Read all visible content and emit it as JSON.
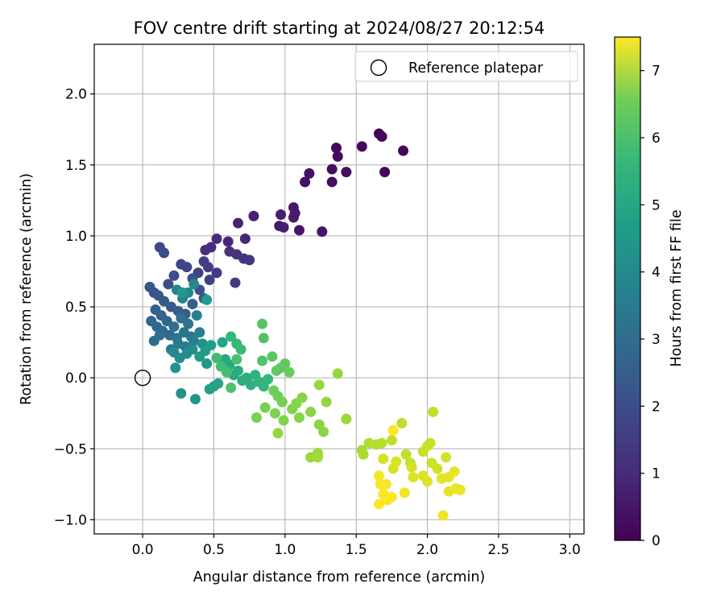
{
  "chart_data": {
    "type": "scatter",
    "title": "FOV centre drift starting at 2024/08/27 20:12:54",
    "xlabel": "Angular distance from reference (arcmin)",
    "ylabel": "Rotation from reference (arcmin)",
    "xlim": [
      -0.34,
      3.1
    ],
    "ylim": [
      -1.1,
      2.35
    ],
    "xticks": [
      "0.0",
      "0.5",
      "1.0",
      "1.5",
      "2.0",
      "2.5",
      "3.0"
    ],
    "xtick_values": [
      0,
      0.5,
      1,
      1.5,
      2,
      2.5,
      3
    ],
    "yticks": [
      "−1.0",
      "−0.5",
      "0.0",
      "0.5",
      "1.0",
      "1.5",
      "2.0"
    ],
    "ytick_values": [
      -1,
      -0.5,
      0,
      0.5,
      1,
      1.5,
      2
    ],
    "grid": true,
    "colormap": "viridis",
    "colorbar": {
      "label": "Hours from first FF file",
      "range": [
        0,
        7.5
      ],
      "ticks": [
        "0",
        "1",
        "2",
        "3",
        "4",
        "5",
        "6",
        "7"
      ],
      "tick_values": [
        0,
        1,
        2,
        3,
        4,
        5,
        6,
        7
      ]
    },
    "legend": {
      "position": "top-right",
      "entries": [
        {
          "label": "Reference platepar",
          "marker": "open-circle"
        }
      ]
    },
    "reference_point": {
      "x": 0.0,
      "y": 0.0
    },
    "points": [
      {
        "x": 1.66,
        "y": 1.72,
        "c": 0.05
      },
      {
        "x": 1.68,
        "y": 1.7,
        "c": 0.1
      },
      {
        "x": 1.83,
        "y": 1.6,
        "c": 0.1
      },
      {
        "x": 1.54,
        "y": 1.63,
        "c": 0.15
      },
      {
        "x": 1.7,
        "y": 1.45,
        "c": 0.15
      },
      {
        "x": 1.36,
        "y": 1.62,
        "c": 0.2
      },
      {
        "x": 1.37,
        "y": 1.56,
        "c": 0.2
      },
      {
        "x": 1.33,
        "y": 1.47,
        "c": 0.25
      },
      {
        "x": 1.43,
        "y": 1.45,
        "c": 0.3
      },
      {
        "x": 1.33,
        "y": 1.38,
        "c": 0.3
      },
      {
        "x": 1.17,
        "y": 1.44,
        "c": 0.35
      },
      {
        "x": 1.14,
        "y": 1.38,
        "c": 0.35
      },
      {
        "x": 1.26,
        "y": 1.03,
        "c": 0.4
      },
      {
        "x": 1.1,
        "y": 1.04,
        "c": 0.45
      },
      {
        "x": 1.06,
        "y": 1.2,
        "c": 0.5
      },
      {
        "x": 1.07,
        "y": 1.16,
        "c": 0.55
      },
      {
        "x": 1.06,
        "y": 1.13,
        "c": 0.55
      },
      {
        "x": 0.97,
        "y": 1.15,
        "c": 0.6
      },
      {
        "x": 0.96,
        "y": 1.07,
        "c": 0.6
      },
      {
        "x": 0.99,
        "y": 1.06,
        "c": 0.65
      },
      {
        "x": 0.78,
        "y": 1.14,
        "c": 0.7
      },
      {
        "x": 0.67,
        "y": 1.09,
        "c": 0.75
      },
      {
        "x": 0.72,
        "y": 0.98,
        "c": 0.8
      },
      {
        "x": 0.6,
        "y": 0.96,
        "c": 0.85
      },
      {
        "x": 0.52,
        "y": 0.98,
        "c": 0.9
      },
      {
        "x": 0.48,
        "y": 0.92,
        "c": 0.95
      },
      {
        "x": 0.44,
        "y": 0.9,
        "c": 1.0
      },
      {
        "x": 0.61,
        "y": 0.89,
        "c": 1.05
      },
      {
        "x": 0.66,
        "y": 0.87,
        "c": 1.1
      },
      {
        "x": 0.71,
        "y": 0.84,
        "c": 1.15
      },
      {
        "x": 0.75,
        "y": 0.83,
        "c": 1.2
      },
      {
        "x": 0.65,
        "y": 0.67,
        "c": 1.25
      },
      {
        "x": 0.52,
        "y": 0.74,
        "c": 1.3
      },
      {
        "x": 0.46,
        "y": 0.78,
        "c": 1.35
      },
      {
        "x": 0.43,
        "y": 0.82,
        "c": 1.4
      },
      {
        "x": 0.47,
        "y": 0.69,
        "c": 1.45
      },
      {
        "x": 0.39,
        "y": 0.74,
        "c": 1.5
      },
      {
        "x": 0.31,
        "y": 0.78,
        "c": 1.55
      },
      {
        "x": 0.27,
        "y": 0.8,
        "c": 1.6
      },
      {
        "x": 0.12,
        "y": 0.92,
        "c": 1.65
      },
      {
        "x": 0.15,
        "y": 0.88,
        "c": 1.7
      },
      {
        "x": 0.22,
        "y": 0.72,
        "c": 1.75
      },
      {
        "x": 0.18,
        "y": 0.66,
        "c": 1.8
      },
      {
        "x": 0.35,
        "y": 0.7,
        "c": 1.85
      },
      {
        "x": 0.4,
        "y": 0.62,
        "c": 1.9
      },
      {
        "x": 0.43,
        "y": 0.56,
        "c": 1.95
      },
      {
        "x": 0.08,
        "y": 0.6,
        "c": 2.0
      },
      {
        "x": 0.05,
        "y": 0.64,
        "c": 2.0
      },
      {
        "x": 0.11,
        "y": 0.58,
        "c": 2.05
      },
      {
        "x": 0.15,
        "y": 0.54,
        "c": 2.1
      },
      {
        "x": 0.2,
        "y": 0.5,
        "c": 2.1
      },
      {
        "x": 0.25,
        "y": 0.47,
        "c": 2.15
      },
      {
        "x": 0.3,
        "y": 0.45,
        "c": 2.2
      },
      {
        "x": 0.35,
        "y": 0.52,
        "c": 2.25
      },
      {
        "x": 0.09,
        "y": 0.48,
        "c": 2.3
      },
      {
        "x": 0.13,
        "y": 0.44,
        "c": 2.35
      },
      {
        "x": 0.17,
        "y": 0.4,
        "c": 2.4
      },
      {
        "x": 0.06,
        "y": 0.4,
        "c": 2.45
      },
      {
        "x": 0.1,
        "y": 0.36,
        "c": 2.5
      },
      {
        "x": 0.14,
        "y": 0.33,
        "c": 2.55
      },
      {
        "x": 0.19,
        "y": 0.3,
        "c": 2.6
      },
      {
        "x": 0.08,
        "y": 0.26,
        "c": 2.65
      },
      {
        "x": 0.12,
        "y": 0.3,
        "c": 2.7
      },
      {
        "x": 0.22,
        "y": 0.36,
        "c": 2.75
      },
      {
        "x": 0.27,
        "y": 0.42,
        "c": 2.8
      },
      {
        "x": 0.32,
        "y": 0.38,
        "c": 2.85
      },
      {
        "x": 0.24,
        "y": 0.28,
        "c": 2.9
      },
      {
        "x": 0.29,
        "y": 0.32,
        "c": 2.95
      },
      {
        "x": 0.34,
        "y": 0.29,
        "c": 3.0
      },
      {
        "x": 0.2,
        "y": 0.2,
        "c": 3.05
      },
      {
        "x": 0.25,
        "y": 0.24,
        "c": 3.1
      },
      {
        "x": 0.3,
        "y": 0.22,
        "c": 3.15
      },
      {
        "x": 0.36,
        "y": 0.26,
        "c": 3.2
      },
      {
        "x": 0.4,
        "y": 0.32,
        "c": 3.25
      },
      {
        "x": 0.38,
        "y": 0.44,
        "c": 3.3
      },
      {
        "x": 0.28,
        "y": 0.56,
        "c": 3.35
      },
      {
        "x": 0.24,
        "y": 0.62,
        "c": 3.4
      },
      {
        "x": 0.32,
        "y": 0.6,
        "c": 3.45
      },
      {
        "x": 0.36,
        "y": 0.66,
        "c": 3.5
      },
      {
        "x": 0.22,
        "y": 0.18,
        "c": 3.55
      },
      {
        "x": 0.26,
        "y": 0.14,
        "c": 3.6
      },
      {
        "x": 0.31,
        "y": 0.17,
        "c": 3.65
      },
      {
        "x": 0.35,
        "y": 0.2,
        "c": 3.7
      },
      {
        "x": 0.42,
        "y": 0.24,
        "c": 3.75
      },
      {
        "x": 0.23,
        "y": 0.07,
        "c": 3.8
      },
      {
        "x": 0.27,
        "y": -0.11,
        "c": 3.85
      },
      {
        "x": 0.37,
        "y": -0.15,
        "c": 3.9
      },
      {
        "x": 0.45,
        "y": 0.1,
        "c": 3.95
      },
      {
        "x": 0.28,
        "y": 0.6,
        "c": 4.0
      },
      {
        "x": 0.45,
        "y": 0.55,
        "c": 4.05
      },
      {
        "x": 0.4,
        "y": 0.15,
        "c": 4.1
      },
      {
        "x": 0.44,
        "y": 0.19,
        "c": 4.15
      },
      {
        "x": 0.48,
        "y": 0.23,
        "c": 4.2
      },
      {
        "x": 0.47,
        "y": -0.08,
        "c": 4.25
      },
      {
        "x": 0.5,
        "y": -0.06,
        "c": 4.3
      },
      {
        "x": 0.53,
        "y": -0.04,
        "c": 4.35
      },
      {
        "x": 0.56,
        "y": 0.25,
        "c": 4.4
      },
      {
        "x": 0.58,
        "y": 0.13,
        "c": 4.45
      },
      {
        "x": 0.61,
        "y": 0.09,
        "c": 4.5
      },
      {
        "x": 0.64,
        "y": 0.02,
        "c": 4.55
      },
      {
        "x": 0.67,
        "y": 0.05,
        "c": 4.6
      },
      {
        "x": 0.7,
        "y": -0.02,
        "c": 4.65
      },
      {
        "x": 0.73,
        "y": 0.0,
        "c": 4.7
      },
      {
        "x": 0.76,
        "y": -0.05,
        "c": 4.75
      },
      {
        "x": 0.79,
        "y": 0.02,
        "c": 4.8
      },
      {
        "x": 0.82,
        "y": -0.03,
        "c": 4.85
      },
      {
        "x": 0.85,
        "y": -0.06,
        "c": 4.9
      },
      {
        "x": 0.88,
        "y": -0.01,
        "c": 4.95
      },
      {
        "x": 0.62,
        "y": 0.29,
        "c": 5.0
      },
      {
        "x": 0.66,
        "y": 0.24,
        "c": 5.05
      },
      {
        "x": 0.69,
        "y": 0.2,
        "c": 5.1
      },
      {
        "x": 0.52,
        "y": 0.14,
        "c": 5.15
      },
      {
        "x": 0.55,
        "y": 0.08,
        "c": 5.2
      },
      {
        "x": 0.59,
        "y": 0.04,
        "c": 5.25
      },
      {
        "x": 0.66,
        "y": 0.13,
        "c": 5.3
      },
      {
        "x": 0.62,
        "y": -0.07,
        "c": 5.35
      },
      {
        "x": 0.84,
        "y": 0.12,
        "c": 5.4
      },
      {
        "x": 0.85,
        "y": 0.28,
        "c": 5.45
      },
      {
        "x": 0.84,
        "y": 0.38,
        "c": 5.5
      },
      {
        "x": 0.91,
        "y": 0.15,
        "c": 5.55
      },
      {
        "x": 0.94,
        "y": 0.05,
        "c": 5.6
      },
      {
        "x": 0.97,
        "y": 0.07,
        "c": 5.65
      },
      {
        "x": 1.0,
        "y": 0.1,
        "c": 5.7
      },
      {
        "x": 1.03,
        "y": 0.04,
        "c": 5.75
      },
      {
        "x": 0.92,
        "y": -0.09,
        "c": 5.8
      },
      {
        "x": 0.95,
        "y": -0.13,
        "c": 5.85
      },
      {
        "x": 0.98,
        "y": -0.17,
        "c": 5.9
      },
      {
        "x": 0.86,
        "y": -0.21,
        "c": 5.95
      },
      {
        "x": 0.8,
        "y": -0.28,
        "c": 6.0
      },
      {
        "x": 0.93,
        "y": -0.25,
        "c": 6.0
      },
      {
        "x": 0.99,
        "y": -0.3,
        "c": 6.05
      },
      {
        "x": 1.05,
        "y": -0.22,
        "c": 6.05
      },
      {
        "x": 1.08,
        "y": -0.18,
        "c": 6.1
      },
      {
        "x": 1.1,
        "y": -0.28,
        "c": 6.1
      },
      {
        "x": 1.12,
        "y": -0.14,
        "c": 6.15
      },
      {
        "x": 1.18,
        "y": -0.24,
        "c": 6.15
      },
      {
        "x": 1.24,
        "y": -0.33,
        "c": 6.2
      },
      {
        "x": 1.27,
        "y": -0.38,
        "c": 6.2
      },
      {
        "x": 1.29,
        "y": -0.17,
        "c": 6.25
      },
      {
        "x": 0.95,
        "y": -0.39,
        "c": 6.25
      },
      {
        "x": 1.24,
        "y": -0.05,
        "c": 6.3
      },
      {
        "x": 1.37,
        "y": 0.03,
        "c": 6.3
      },
      {
        "x": 1.43,
        "y": -0.29,
        "c": 6.35
      },
      {
        "x": 1.18,
        "y": -0.56,
        "c": 6.35
      },
      {
        "x": 1.23,
        "y": -0.53,
        "c": 6.4
      },
      {
        "x": 1.23,
        "y": -0.56,
        "c": 6.45
      },
      {
        "x": 1.54,
        "y": -0.51,
        "c": 6.5
      },
      {
        "x": 1.55,
        "y": -0.54,
        "c": 6.55
      },
      {
        "x": 1.59,
        "y": -0.46,
        "c": 6.6
      },
      {
        "x": 1.64,
        "y": -0.47,
        "c": 6.65
      },
      {
        "x": 1.68,
        "y": -0.46,
        "c": 6.7
      },
      {
        "x": 1.75,
        "y": -0.44,
        "c": 6.75
      },
      {
        "x": 1.82,
        "y": -0.32,
        "c": 6.75
      },
      {
        "x": 2.04,
        "y": -0.24,
        "c": 6.8
      },
      {
        "x": 1.85,
        "y": -0.54,
        "c": 6.8
      },
      {
        "x": 1.88,
        "y": -0.6,
        "c": 6.85
      },
      {
        "x": 1.97,
        "y": -0.52,
        "c": 6.85
      },
      {
        "x": 2.0,
        "y": -0.48,
        "c": 6.9
      },
      {
        "x": 2.02,
        "y": -0.46,
        "c": 6.9
      },
      {
        "x": 2.03,
        "y": -0.6,
        "c": 6.95
      },
      {
        "x": 2.07,
        "y": -0.64,
        "c": 6.95
      },
      {
        "x": 2.13,
        "y": -0.56,
        "c": 7.0
      },
      {
        "x": 1.89,
        "y": -0.63,
        "c": 7.0
      },
      {
        "x": 1.76,
        "y": -0.64,
        "c": 7.05
      },
      {
        "x": 1.69,
        "y": -0.57,
        "c": 7.05
      },
      {
        "x": 1.78,
        "y": -0.59,
        "c": 7.1
      },
      {
        "x": 1.9,
        "y": -0.7,
        "c": 7.1
      },
      {
        "x": 1.97,
        "y": -0.69,
        "c": 7.15
      },
      {
        "x": 2.0,
        "y": -0.73,
        "c": 7.15
      },
      {
        "x": 2.1,
        "y": -0.71,
        "c": 7.2
      },
      {
        "x": 2.15,
        "y": -0.7,
        "c": 7.2
      },
      {
        "x": 2.19,
        "y": -0.66,
        "c": 7.25
      },
      {
        "x": 2.15,
        "y": -0.8,
        "c": 7.25
      },
      {
        "x": 2.2,
        "y": -0.78,
        "c": 7.3
      },
      {
        "x": 2.23,
        "y": -0.79,
        "c": 7.3
      },
      {
        "x": 2.11,
        "y": -0.97,
        "c": 7.35
      },
      {
        "x": 1.84,
        "y": -0.81,
        "c": 7.35
      },
      {
        "x": 1.71,
        "y": -0.75,
        "c": 7.4
      },
      {
        "x": 1.66,
        "y": -0.69,
        "c": 7.4
      },
      {
        "x": 1.67,
        "y": -0.75,
        "c": 7.45
      },
      {
        "x": 1.69,
        "y": -0.82,
        "c": 7.45
      },
      {
        "x": 1.72,
        "y": -0.86,
        "c": 7.5
      },
      {
        "x": 1.66,
        "y": -0.89,
        "c": 7.5
      },
      {
        "x": 1.75,
        "y": -0.84,
        "c": 7.5
      },
      {
        "x": 1.76,
        "y": -0.37,
        "c": 7.5
      }
    ]
  }
}
